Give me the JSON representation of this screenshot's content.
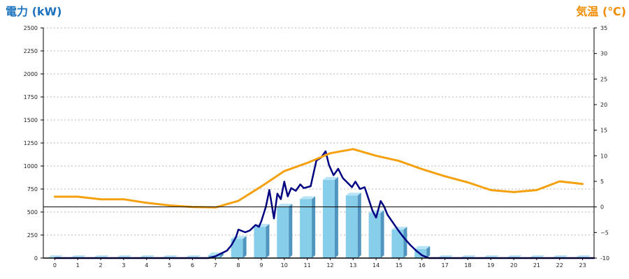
{
  "chart_data": {
    "type": "bar",
    "title": "",
    "xlabel": "",
    "y_left_label": "電力 (kW)",
    "y_right_label": "気温 (℃)",
    "ylim_left": [
      0,
      2500
    ],
    "ylim_right": [
      -10,
      35
    ],
    "grid": "horizontal dotted",
    "categories": [
      "0",
      "1",
      "2",
      "3",
      "4",
      "5",
      "6",
      "7",
      "8",
      "9",
      "10",
      "11",
      "12",
      "13",
      "14",
      "15",
      "16",
      "17",
      "18",
      "19",
      "20",
      "21",
      "22",
      "23"
    ],
    "y_left_ticks": [
      "0",
      "250",
      "500",
      "750",
      "1000",
      "1250",
      "1500",
      "1750",
      "2000",
      "2250",
      "2500"
    ],
    "y_right_ticks": [
      "-10",
      "−5",
      "0",
      "5",
      "10",
      "15",
      "20",
      "25",
      "30",
      "35"
    ],
    "series": [
      {
        "type": "bar",
        "axis": "left",
        "values": [
          0,
          0,
          0,
          0,
          0,
          0,
          0,
          30,
          210,
          340,
          560,
          640,
          850,
          680,
          490,
          310,
          100,
          0,
          0,
          0,
          0,
          0,
          0,
          0
        ]
      },
      {
        "type": "line",
        "axis": "left",
        "points": [
          [
            0,
            0
          ],
          [
            6.7,
            0
          ],
          [
            7,
            20
          ],
          [
            7.5,
            80
          ],
          [
            7.7,
            140
          ],
          [
            7.9,
            230
          ],
          [
            8.0,
            310
          ],
          [
            8.3,
            280
          ],
          [
            8.5,
            300
          ],
          [
            8.75,
            360
          ],
          [
            8.9,
            340
          ],
          [
            9.0,
            400
          ],
          [
            9.2,
            560
          ],
          [
            9.35,
            740
          ],
          [
            9.55,
            430
          ],
          [
            9.7,
            700
          ],
          [
            9.85,
            640
          ],
          [
            10.0,
            830
          ],
          [
            10.15,
            670
          ],
          [
            10.3,
            760
          ],
          [
            10.5,
            730
          ],
          [
            10.7,
            800
          ],
          [
            10.85,
            760
          ],
          [
            11.15,
            780
          ],
          [
            11.4,
            1060
          ],
          [
            11.6,
            1090
          ],
          [
            11.8,
            1160
          ],
          [
            11.95,
            1010
          ],
          [
            12.15,
            900
          ],
          [
            12.35,
            970
          ],
          [
            12.55,
            870
          ],
          [
            12.75,
            820
          ],
          [
            12.95,
            770
          ],
          [
            13.1,
            830
          ],
          [
            13.3,
            750
          ],
          [
            13.5,
            770
          ],
          [
            13.65,
            660
          ],
          [
            13.85,
            510
          ],
          [
            14.0,
            440
          ],
          [
            14.2,
            620
          ],
          [
            14.35,
            560
          ],
          [
            14.5,
            470
          ],
          [
            14.75,
            380
          ],
          [
            15.0,
            290
          ],
          [
            15.25,
            210
          ],
          [
            15.5,
            140
          ],
          [
            15.75,
            80
          ],
          [
            16.0,
            30
          ],
          [
            16.3,
            0
          ],
          [
            23.5,
            0
          ]
        ]
      },
      {
        "type": "line",
        "axis": "right",
        "points": [
          [
            0,
            2
          ],
          [
            1,
            2
          ],
          [
            2,
            1.5
          ],
          [
            3,
            1.5
          ],
          [
            4,
            0.8
          ],
          [
            5,
            0.3
          ],
          [
            6,
            0
          ],
          [
            7,
            -0.1
          ],
          [
            8,
            1.2
          ],
          [
            9,
            4
          ],
          [
            10,
            7
          ],
          [
            11,
            8.6
          ],
          [
            12,
            10.5
          ],
          [
            13,
            11.3
          ],
          [
            14,
            10
          ],
          [
            15,
            9
          ],
          [
            16,
            7.4
          ],
          [
            17,
            6
          ],
          [
            18,
            4.8
          ],
          [
            19,
            3.3
          ],
          [
            20,
            2.9
          ],
          [
            21,
            3.3
          ],
          [
            22,
            5
          ],
          [
            23,
            4.5
          ]
        ]
      }
    ],
    "colors": {
      "bar_front": "#87CEEB",
      "bar_side": "#4F95BF",
      "bar_top": "#B6E3F5",
      "power_line": "#000080",
      "temp_line": "#F5A00E",
      "left_title": "#1E73BE",
      "right_title": "#F08C00",
      "grid": "#b5b5b5"
    }
  }
}
